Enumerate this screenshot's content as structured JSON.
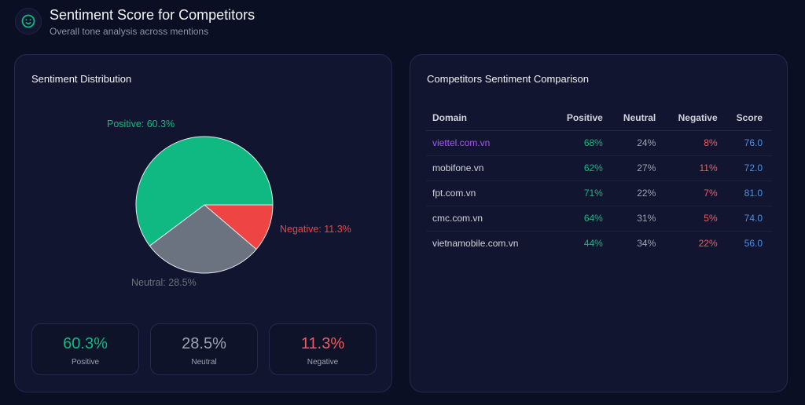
{
  "header": {
    "title": "Sentiment Score for Competitors",
    "subtitle": "Overall tone analysis across mentions"
  },
  "distribution": {
    "title": "Sentiment Distribution",
    "labels": {
      "positive": "Positive: 60.3%",
      "neutral": "Neutral: 28.5%",
      "negative": "Negative: 11.3%"
    },
    "stats": [
      {
        "value": "60.3%",
        "label": "Positive"
      },
      {
        "value": "28.5%",
        "label": "Neutral"
      },
      {
        "value": "11.3%",
        "label": "Negative"
      }
    ]
  },
  "chart_data": {
    "type": "pie",
    "categories": [
      "Negative",
      "Neutral",
      "Positive"
    ],
    "values": [
      11.3,
      28.5,
      60.3
    ],
    "colors": [
      "#ef4444",
      "#6b7280",
      "#10b981"
    ]
  },
  "comparison": {
    "title": "Competitors Sentiment Comparison",
    "columns": [
      "Domain",
      "Positive",
      "Neutral",
      "Negative",
      "Score"
    ],
    "rows": [
      [
        "viettel.com.vn",
        "68%",
        "24%",
        "8%",
        "76.0"
      ],
      [
        "mobifone.vn",
        "62%",
        "27%",
        "11%",
        "72.0"
      ],
      [
        "fpt.com.vn",
        "71%",
        "22%",
        "7%",
        "81.0"
      ],
      [
        "cmc.com.vn",
        "64%",
        "31%",
        "5%",
        "74.0"
      ],
      [
        "vietnamobile.com.vn",
        "44%",
        "34%",
        "22%",
        "56.0"
      ]
    ]
  }
}
